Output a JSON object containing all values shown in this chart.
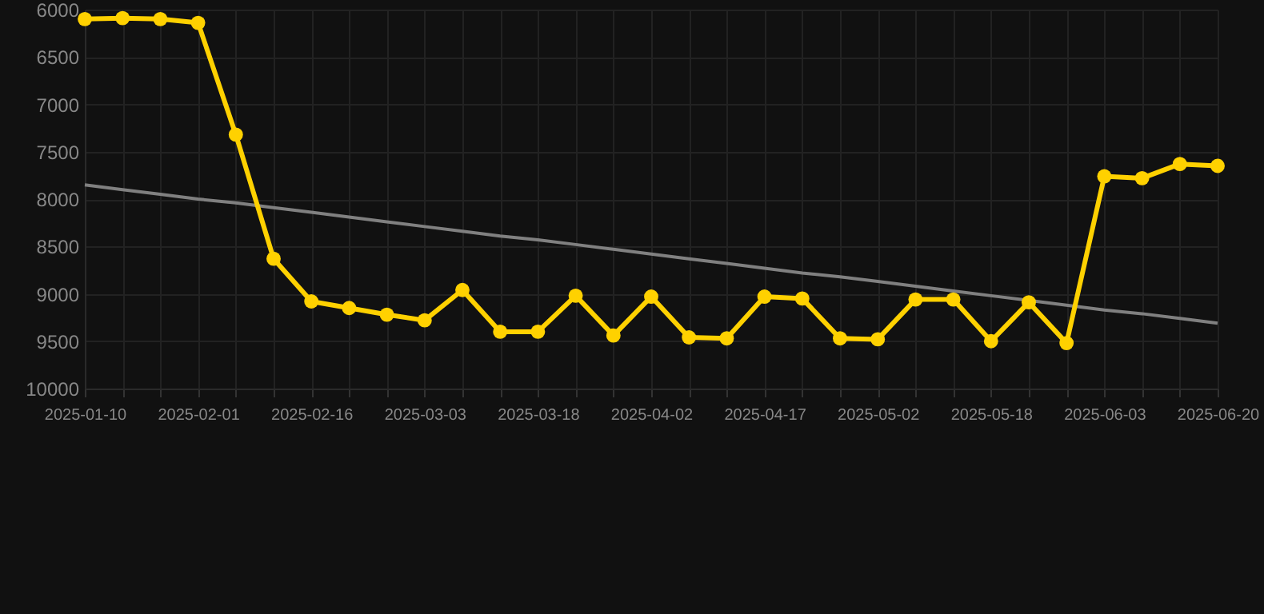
{
  "chart_data": {
    "type": "line",
    "categories": [
      "2025-01-10",
      null,
      null,
      "2025-02-01",
      null,
      null,
      "2025-02-16",
      null,
      null,
      "2025-03-03",
      null,
      null,
      "2025-03-18",
      null,
      null,
      "2025-04-02",
      null,
      null,
      "2025-04-17",
      null,
      null,
      "2025-05-02",
      null,
      null,
      "2025-05-18",
      null,
      null,
      "2025-06-03",
      null,
      null,
      "2025-06-20"
    ],
    "series": [
      {
        "color": "#ffd100",
        "marker": "circle",
        "values": [
          6100,
          6090,
          6100,
          6140,
          7320,
          8630,
          9080,
          9150,
          9220,
          9280,
          8960,
          9400,
          9400,
          9020,
          9440,
          9030,
          9460,
          9470,
          9030,
          9050,
          9470,
          9480,
          9060,
          9060,
          9500,
          9090,
          9520,
          7760,
          7780,
          7630,
          7650
        ]
      },
      {
        "type": "line",
        "color": "#808080",
        "marker": "none",
        "values": [
          7850,
          7900,
          7950,
          8000,
          8040,
          8090,
          8140,
          8190,
          8240,
          8290,
          8340,
          8390,
          8430,
          8480,
          8530,
          8580,
          8630,
          8680,
          8730,
          8780,
          8820,
          8870,
          8920,
          8970,
          9020,
          9070,
          9120,
          9170,
          9210,
          9260,
          9310
        ]
      }
    ],
    "ylim": [
      10000,
      6000
    ],
    "yticks": [
      6000,
      6500,
      7000,
      7500,
      8000,
      8500,
      9000,
      9500,
      10000
    ],
    "grid": true
  }
}
